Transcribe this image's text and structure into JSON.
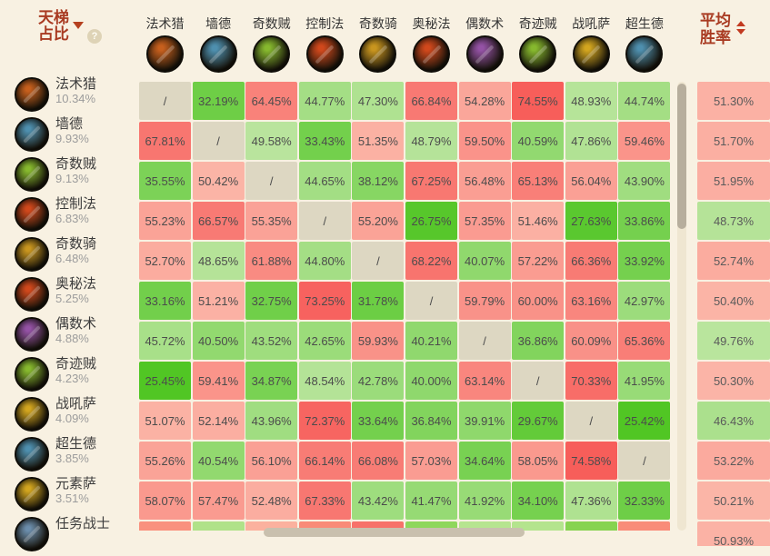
{
  "title": {
    "line1": "天梯",
    "line2": "占比"
  },
  "help_icon_label": "?",
  "avg_header": {
    "line1": "平均",
    "line2": "胜率"
  },
  "columns": [
    {
      "label": "法术猎",
      "accent": "#c65f1d"
    },
    {
      "label": "墙德",
      "accent": "#4e8fae"
    },
    {
      "label": "奇数贼",
      "accent": "#86b82e"
    },
    {
      "label": "控制法",
      "accent": "#d0481c"
    },
    {
      "label": "奇数骑",
      "accent": "#c8951f"
    },
    {
      "label": "奥秘法",
      "accent": "#d0481c"
    },
    {
      "label": "偶数术",
      "accent": "#9452a5"
    },
    {
      "label": "奇迹贼",
      "accent": "#86b82e"
    },
    {
      "label": "战吼萨",
      "accent": "#d2a51f"
    },
    {
      "label": "超生德",
      "accent": "#4e8fae"
    }
  ],
  "rows": [
    {
      "label": "法术猎",
      "share": "10.34%",
      "accent": "#c65f1d",
      "cells": [
        "/",
        "32.19%",
        "64.45%",
        "44.77%",
        "47.30%",
        "66.84%",
        "54.28%",
        "74.55%",
        "48.93%",
        "44.74%"
      ],
      "avg": "51.30%"
    },
    {
      "label": "墙德",
      "share": "9.93%",
      "accent": "#4e8fae",
      "cells": [
        "67.81%",
        "/",
        "49.58%",
        "33.43%",
        "51.35%",
        "48.79%",
        "59.50%",
        "40.59%",
        "47.86%",
        "59.46%"
      ],
      "avg": "51.70%"
    },
    {
      "label": "奇数贼",
      "share": "9.13%",
      "accent": "#86b82e",
      "cells": [
        "35.55%",
        "50.42%",
        "/",
        "44.65%",
        "38.12%",
        "67.25%",
        "56.48%",
        "65.13%",
        "56.04%",
        "43.90%"
      ],
      "avg": "51.95%"
    },
    {
      "label": "控制法",
      "share": "6.83%",
      "accent": "#d0481c",
      "cells": [
        "55.23%",
        "66.57%",
        "55.35%",
        "/",
        "55.20%",
        "26.75%",
        "57.35%",
        "51.46%",
        "27.63%",
        "33.86%"
      ],
      "avg": "48.73%"
    },
    {
      "label": "奇数骑",
      "share": "6.48%",
      "accent": "#c8951f",
      "cells": [
        "52.70%",
        "48.65%",
        "61.88%",
        "44.80%",
        "/",
        "68.22%",
        "40.07%",
        "57.22%",
        "66.36%",
        "33.92%"
      ],
      "avg": "52.74%"
    },
    {
      "label": "奥秘法",
      "share": "5.25%",
      "accent": "#d0481c",
      "cells": [
        "33.16%",
        "51.21%",
        "32.75%",
        "73.25%",
        "31.78%",
        "/",
        "59.79%",
        "60.00%",
        "63.16%",
        "42.97%"
      ],
      "avg": "50.40%"
    },
    {
      "label": "偶数术",
      "share": "4.88%",
      "accent": "#9452a5",
      "cells": [
        "45.72%",
        "40.50%",
        "43.52%",
        "42.65%",
        "59.93%",
        "40.21%",
        "/",
        "36.86%",
        "60.09%",
        "65.36%"
      ],
      "avg": "49.76%"
    },
    {
      "label": "奇迹贼",
      "share": "4.23%",
      "accent": "#86b82e",
      "cells": [
        "25.45%",
        "59.41%",
        "34.87%",
        "48.54%",
        "42.78%",
        "40.00%",
        "63.14%",
        "/",
        "70.33%",
        "41.95%"
      ],
      "avg": "50.30%"
    },
    {
      "label": "战吼萨",
      "share": "4.09%",
      "accent": "#d2a51f",
      "cells": [
        "51.07%",
        "52.14%",
        "43.96%",
        "72.37%",
        "33.64%",
        "36.84%",
        "39.91%",
        "29.67%",
        "/",
        "25.42%"
      ],
      "avg": "46.43%"
    },
    {
      "label": "超生德",
      "share": "3.85%",
      "accent": "#4e8fae",
      "cells": [
        "55.26%",
        "40.54%",
        "56.10%",
        "66.14%",
        "66.08%",
        "57.03%",
        "34.64%",
        "58.05%",
        "74.58%",
        "/"
      ],
      "avg": "53.22%"
    },
    {
      "label": "元素萨",
      "share": "3.51%",
      "accent": "#d2a51f",
      "cells": [
        "58.07%",
        "57.47%",
        "52.48%",
        "67.33%",
        "43.42%",
        "41.47%",
        "41.92%",
        "34.10%",
        "47.36%",
        "32.33%"
      ],
      "avg": "50.21%"
    },
    {
      "label": "任务战士",
      "share": "",
      "accent": "#6b8dab",
      "cells": [
        "",
        "",
        "",
        "",
        "",
        "",
        "",
        "",
        "",
        ""
      ],
      "cell_colors": [
        "#f9917e",
        "#b0e289",
        "#fbb19e",
        "#f98b78",
        "#f7716a",
        "#8ed75c",
        "#b6e590",
        "#b4e48e",
        "#87d350",
        "#f98c79"
      ],
      "avg": "50.93%"
    }
  ],
  "colors": {
    "page_bg": "#f8f1e2",
    "diagonal_cell": "#ddd7c2",
    "green_light": "#d2ecba",
    "green_dark": "#4fc522",
    "red_light": "#fcc9b9",
    "red_dark": "#f75c59",
    "title_red": "#a93b22",
    "arrow_red": "#c23a20",
    "cell_text": "#4c4c4c",
    "scroll_thumb": "#b7ae9d",
    "scroll_track": "#efe6d1"
  }
}
